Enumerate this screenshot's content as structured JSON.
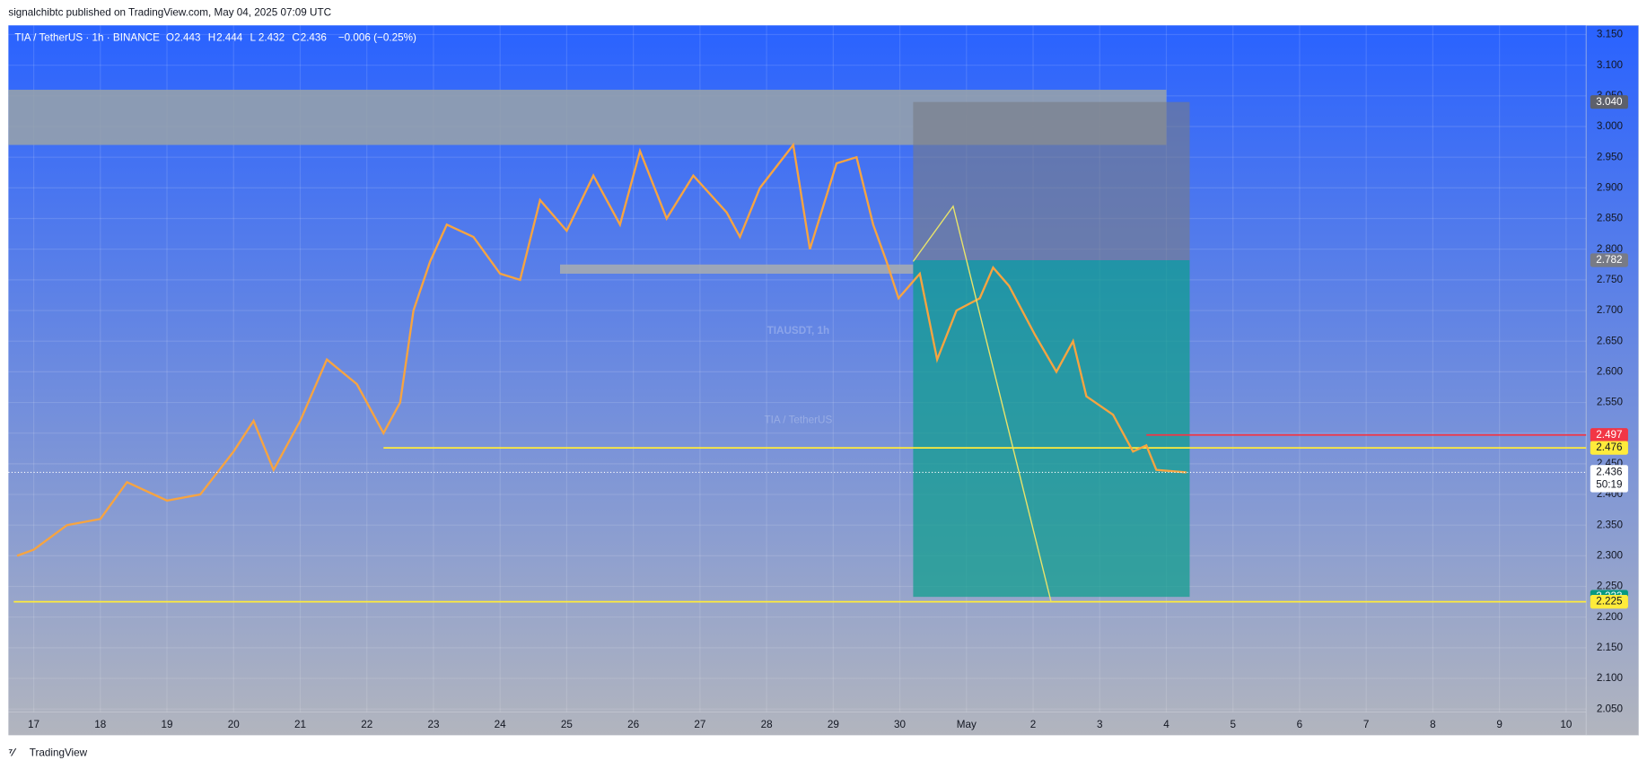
{
  "header": "signalchibtc published on TradingView.com, May 04, 2025 07:09 UTC",
  "footer": "TradingView",
  "chart_data": {
    "type": "line",
    "symbol": "TIA / TetherUS · 1h · BINANCE",
    "ohlc": [
      {
        "label": "O",
        "value": 2.443
      },
      {
        "label": "H",
        "value": 2.444
      },
      {
        "label": "L",
        "value": 2.432
      },
      {
        "label": "C",
        "value": 2.436
      }
    ],
    "change": "−0.006 (−0.25%)",
    "watermark": "TIAUSDT, 1h",
    "watermark_sub": "TIA / TetherUS",
    "color": "#f7a440",
    "x": [
      -0.25,
      0,
      0.5,
      1,
      1.4,
      2,
      2.5,
      3,
      3.3,
      3.6,
      4,
      4.4,
      4.85,
      5.25,
      5.5,
      5.7,
      5.95,
      6.2,
      6.6,
      7,
      7.3,
      7.6,
      8,
      8.4,
      8.8,
      9.1,
      9.5,
      9.9,
      10.4,
      10.6,
      10.9,
      11.4,
      11.65,
      12.05,
      12.35,
      12.6,
      12.8,
      12.98,
      13.3,
      13.56,
      13.85,
      14.2,
      14.4,
      14.64,
      15.03,
      15.35,
      15.6,
      15.8,
      16.2,
      16.5,
      16.7,
      16.85,
      17.3
    ],
    "values": [
      2.3,
      2.31,
      2.35,
      2.36,
      2.42,
      2.39,
      2.4,
      2.47,
      2.52,
      2.44,
      2.52,
      2.62,
      2.58,
      2.5,
      2.55,
      2.7,
      2.78,
      2.84,
      2.82,
      2.76,
      2.75,
      2.88,
      2.83,
      2.92,
      2.84,
      2.96,
      2.85,
      2.92,
      2.86,
      2.82,
      2.9,
      2.97,
      2.8,
      2.94,
      2.95,
      2.84,
      2.78,
      2.72,
      2.76,
      2.62,
      2.7,
      2.72,
      2.77,
      2.74,
      2.66,
      2.6,
      2.65,
      2.56,
      2.53,
      2.47,
      2.48,
      2.44,
      2.436
    ],
    "xlim": [
      -0.38,
      23.3
    ],
    "ylim": [
      2.045,
      3.165
    ],
    "xticks": [
      {
        "value": 0,
        "label": "17"
      },
      {
        "value": 1,
        "label": "18"
      },
      {
        "value": 2,
        "label": "19"
      },
      {
        "value": 3,
        "label": "20"
      },
      {
        "value": 4,
        "label": "21"
      },
      {
        "value": 5,
        "label": "22"
      },
      {
        "value": 6,
        "label": "23"
      },
      {
        "value": 7,
        "label": "24"
      },
      {
        "value": 8,
        "label": "25"
      },
      {
        "value": 9,
        "label": "26"
      },
      {
        "value": 10,
        "label": "27"
      },
      {
        "value": 11,
        "label": "28"
      },
      {
        "value": 12,
        "label": "29"
      },
      {
        "value": 13,
        "label": "30"
      },
      {
        "value": 14,
        "label": "May"
      },
      {
        "value": 15,
        "label": "2"
      },
      {
        "value": 16,
        "label": "3"
      },
      {
        "value": 17,
        "label": "4"
      },
      {
        "value": 18,
        "label": "5"
      },
      {
        "value": 19,
        "label": "6"
      },
      {
        "value": 20,
        "label": "7"
      },
      {
        "value": 21,
        "label": "8"
      },
      {
        "value": 22,
        "label": "9"
      },
      {
        "value": 23,
        "label": "10"
      }
    ],
    "yticks": [
      {
        "value": 2.05,
        "label": "2.050"
      },
      {
        "value": 2.1,
        "label": "2.100"
      },
      {
        "value": 2.15,
        "label": "2.150"
      },
      {
        "value": 2.2,
        "label": "2.200"
      },
      {
        "value": 2.25,
        "label": "2.250"
      },
      {
        "value": 2.3,
        "label": "2.300"
      },
      {
        "value": 2.35,
        "label": "2.350"
      },
      {
        "value": 2.4,
        "label": "2.400"
      },
      {
        "value": 2.45,
        "label": "2.450"
      },
      {
        "value": 2.5,
        "label": "2.500"
      },
      {
        "value": 2.55,
        "label": "2.550"
      },
      {
        "value": 2.6,
        "label": "2.600"
      },
      {
        "value": 2.65,
        "label": "2.650"
      },
      {
        "value": 2.7,
        "label": "2.700"
      },
      {
        "value": 2.75,
        "label": "2.750"
      },
      {
        "value": 2.8,
        "label": "2.800"
      },
      {
        "value": 2.85,
        "label": "2.850"
      },
      {
        "value": 2.9,
        "label": "2.900"
      },
      {
        "value": 2.95,
        "label": "2.950"
      },
      {
        "value": 3,
        "label": "3.000"
      },
      {
        "value": 3.05,
        "label": "3.050"
      },
      {
        "value": 3.1,
        "label": "3.100"
      },
      {
        "value": 3.15,
        "label": "3.150"
      }
    ],
    "grid": true,
    "zones": [
      {
        "from": 2.97,
        "to": 3.06,
        "x": [
          -0.38,
          17.0
        ],
        "color": "#9aa3a8"
      },
      {
        "from": 2.76,
        "to": 2.775,
        "x": [
          7.9,
          13.2
        ],
        "color": "#a8adaf"
      }
    ],
    "position": {
      "x": [
        13.2,
        17.35
      ],
      "entry": 2.782,
      "stop": {
        "value": 3.04,
        "label": "3.040"
      },
      "target": 2.233
    },
    "levels": [
      {
        "value": 2.497,
        "label": "2.497",
        "x": 16.7,
        "color": "#f23645"
      },
      {
        "value": 2.476,
        "label": "2.476",
        "x": 5.25,
        "color": "#ffeb3b"
      },
      {
        "value": 2.225,
        "label": "2.225",
        "x": -0.3,
        "color": "#ffeb3b"
      }
    ],
    "arrow": {
      "x": [
        13.2,
        13.8,
        15.27
      ],
      "y": [
        2.78,
        2.87,
        2.225
      ]
    },
    "last_price": 2.436,
    "countdown": "50:19"
  }
}
